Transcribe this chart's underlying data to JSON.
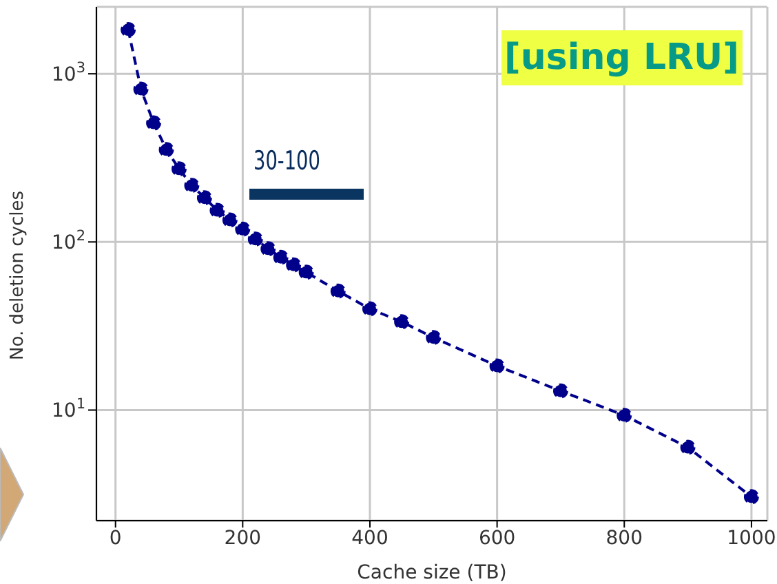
{
  "chart_data": {
    "type": "line",
    "xlabel": "Cache size (TB)",
    "ylabel": "No. deletion cycles",
    "annotations": [
      "[using LRU]",
      "30-100"
    ],
    "x": [
      20,
      40,
      60,
      80,
      100,
      120,
      140,
      160,
      180,
      200,
      220,
      240,
      260,
      280,
      300,
      350,
      400,
      450,
      500,
      600,
      700,
      800,
      900,
      1000
    ],
    "series": [
      {
        "color": "#00008b",
        "values": [
          1830,
          810,
          510,
          354,
          272,
          217,
          183,
          154,
          135,
          119,
          104,
          91,
          81,
          73,
          66,
          51,
          40,
          33.5,
          27,
          18.3,
          13,
          9.3,
          6.0,
          3.05
        ]
      }
    ],
    "log": "y",
    "xlim": [
      -30,
      1025
    ],
    "ylim": [
      2.2,
      2500
    ],
    "xticks": [
      0,
      200,
      400,
      600,
      800,
      1000
    ],
    "yticks": [
      {
        "value": 10,
        "label": "10$^{1}$"
      },
      {
        "value": 100,
        "label": "10$^{2}$"
      },
      {
        "value": 1000,
        "label": "10$^{3}$"
      }
    ],
    "grid": true,
    "marker": "circle",
    "line_style": "dashed",
    "legend": false
  }
}
